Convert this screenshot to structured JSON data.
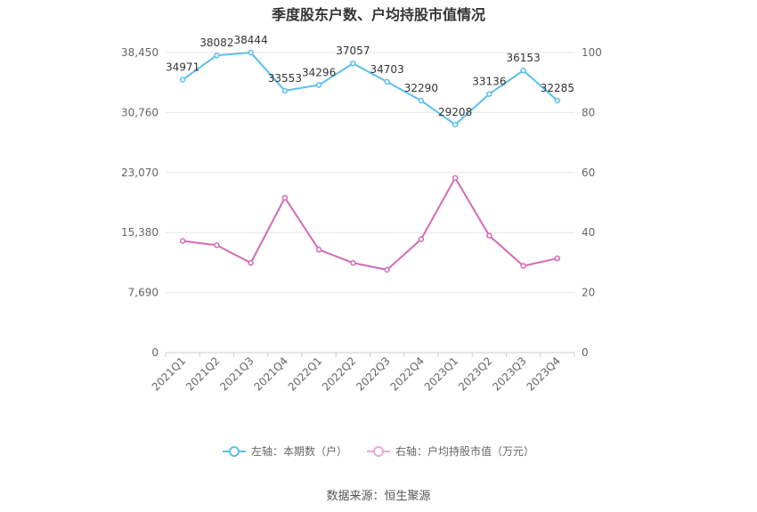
{
  "title": "季度股东户数、户均持股市值情况",
  "source": "数据来源：恒生聚源",
  "chart_data": {
    "type": "line",
    "categories": [
      "2021Q1",
      "2021Q2",
      "2021Q3",
      "2021Q4",
      "2022Q1",
      "2022Q2",
      "2022Q3",
      "2022Q4",
      "2023Q1",
      "2023Q2",
      "2023Q3",
      "2023Q4"
    ],
    "left_axis": {
      "ticks": [
        "0",
        "7,690",
        "15,380",
        "23,070",
        "30,760",
        "38,450"
      ],
      "min": 0,
      "max": 38450
    },
    "right_axis": {
      "ticks": [
        "0",
        "20",
        "40",
        "60",
        "80",
        "100"
      ],
      "min": 0,
      "max": 100
    },
    "grid": true,
    "legend_position": "bottom",
    "series": [
      {
        "name": "左轴：本期数（户）",
        "axis": "left",
        "color": "#5bbfee",
        "values": [
          34971,
          38082,
          38444,
          33553,
          34296,
          37057,
          34703,
          32290,
          29208,
          33136,
          36153,
          32285
        ],
        "labels": [
          "34971",
          "38082",
          "38444",
          "33553",
          "34296",
          "37057",
          "34703",
          "32290",
          "29208",
          "33136",
          "36153",
          "32285"
        ]
      },
      {
        "name": "右轴：户均持股市值（万元）",
        "axis": "right",
        "color": "#d36bb5",
        "values": [
          37.2,
          35.8,
          29.9,
          51.6,
          34.3,
          29.9,
          27.6,
          37.8,
          58.2,
          39.0,
          28.9,
          31.4
        ]
      }
    ]
  }
}
